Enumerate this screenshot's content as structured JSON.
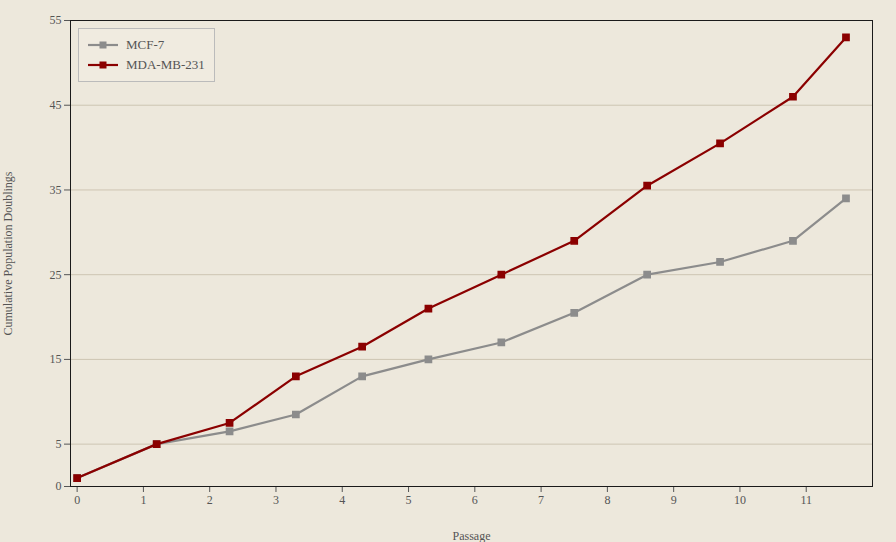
{
  "chart_data": {
    "type": "line",
    "xlabel": "Passage",
    "ylabel": "Cumulative Population Doublings",
    "x": [
      0,
      1.2,
      2.3,
      3.3,
      4.3,
      5.3,
      6.4,
      7.5,
      8.6,
      9.7,
      10.8,
      11.6
    ],
    "series": [
      {
        "name": "MCF-7",
        "color": "#8C8C8C",
        "marker": "square",
        "values": [
          1,
          5,
          6.5,
          8.5,
          13,
          15,
          17,
          20.5,
          25,
          26.5,
          29,
          34
        ]
      },
      {
        "name": "MDA-MB-231",
        "color": "#8B0000",
        "marker": "square",
        "values": [
          1,
          5,
          7.5,
          13,
          16.5,
          21,
          25,
          29,
          35.5,
          40.5,
          46,
          53
        ]
      }
    ],
    "xlim": [
      -0.1,
      12
    ],
    "ylim": [
      0,
      55
    ],
    "xticks": [
      0,
      1,
      2,
      3,
      4,
      5,
      6,
      7,
      8,
      9,
      10,
      11
    ],
    "yticks": [
      0,
      5,
      15,
      25,
      35,
      45,
      55
    ],
    "grid": true,
    "legend": "upper left"
  }
}
